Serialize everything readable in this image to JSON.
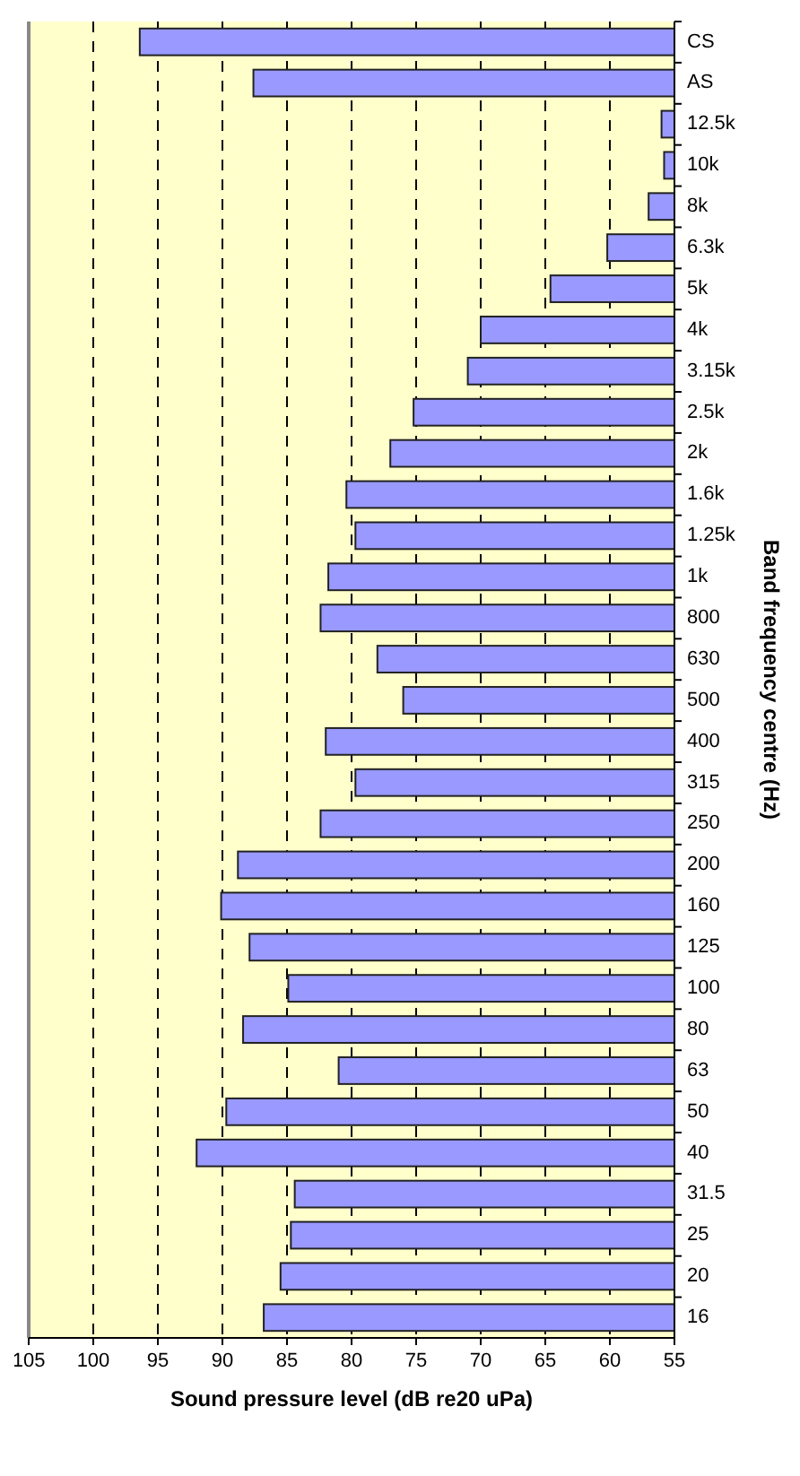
{
  "chart_data": {
    "type": "bar",
    "orientation": "horizontal",
    "xlabel": "Sound pressure level (dB re20 uPa)",
    "ylabel": "Band frequency centre (Hz)",
    "categories": [
      "CS",
      "AS",
      "12.5k",
      "10k",
      "8k",
      "6.3k",
      "5k",
      "4k",
      "3.15k",
      "2.5k",
      "2k",
      "1.6k",
      "1.25k",
      "1k",
      "800",
      "630",
      "500",
      "400",
      "315",
      "250",
      "200",
      "160",
      "125",
      "100",
      "80",
      "63",
      "50",
      "40",
      "31.5",
      "25",
      "20",
      "16"
    ],
    "values": [
      96.4,
      87.6,
      56.0,
      55.8,
      57.0,
      60.2,
      64.6,
      70.0,
      71.0,
      75.2,
      77.0,
      80.4,
      79.7,
      81.8,
      82.4,
      78.0,
      76.0,
      82.0,
      79.7,
      82.4,
      88.8,
      90.1,
      87.9,
      84.9,
      88.4,
      81.0,
      89.7,
      92.0,
      84.4,
      84.7,
      85.5,
      86.8
    ],
    "color": "#9999ff",
    "xlim": [
      105,
      55
    ],
    "xticks": [
      105,
      100,
      95,
      90,
      85,
      80,
      75,
      70,
      65,
      60,
      55
    ],
    "grid": "x",
    "line_style": "dashed"
  }
}
